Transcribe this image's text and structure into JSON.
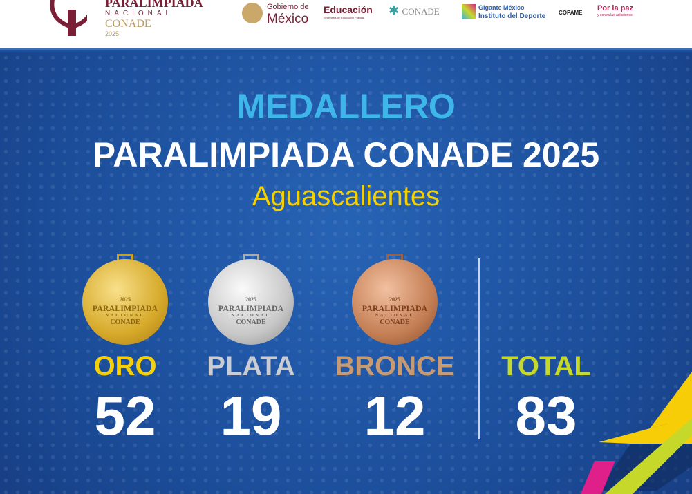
{
  "header": {
    "event_logo": {
      "line1": "PARALIMPIADA",
      "line2": "NACIONAL",
      "line3": "CONADE",
      "line4": "2025"
    },
    "sponsors": [
      {
        "top": "Gobierno de",
        "main": "México"
      },
      {
        "main": "Educación",
        "sub": "Secretaría de Educación Pública"
      },
      {
        "main": "CONADE"
      },
      {
        "main": "Gigante México",
        "sub": "Instituto del Deporte"
      },
      {
        "main": "COPAME"
      },
      {
        "main": "Por la paz",
        "sub": "y contra las adicciones"
      }
    ]
  },
  "title": {
    "kicker": "MEDALLERO",
    "main": "PARALIMPIADA CONADE 2025",
    "location": "Aguascalientes"
  },
  "medal_text": {
    "year": "2025",
    "l1": "PARALIMPIADA",
    "l2": "NACIONAL",
    "l3": "CONADE"
  },
  "medals": [
    {
      "label": "ORO",
      "count": "52",
      "color": "#f5cf0a"
    },
    {
      "label": "PLATA",
      "count": "19",
      "color": "#c9ccd2"
    },
    {
      "label": "BRONCE",
      "count": "12",
      "color": "#c69a72"
    }
  ],
  "total": {
    "label": "TOTAL",
    "count": "83",
    "color": "#c6d82a"
  }
}
